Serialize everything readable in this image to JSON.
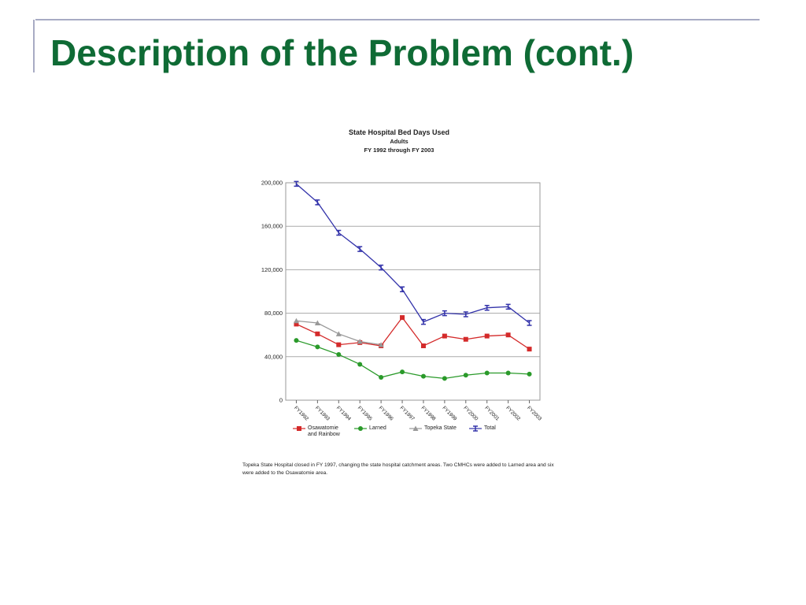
{
  "slide_title": "Description of the Problem (cont.)",
  "chart_data": {
    "type": "line",
    "title": "State Hospital Bed Days Used",
    "subtitle": [
      "Adults",
      "FY 1992 through FY 2003"
    ],
    "categories": [
      "FY1992",
      "FY1993",
      "FY1994",
      "FY1995",
      "FY1996",
      "FY1997",
      "FY1998",
      "FY1999",
      "FY2000",
      "FY2001",
      "FY2002",
      "FY2003"
    ],
    "series": [
      {
        "name": "Osawatomie and Rainbow",
        "color": "#d42a2a",
        "marker": "square",
        "values": [
          70000,
          61000,
          51000,
          53000,
          50000,
          76000,
          50000,
          59000,
          56000,
          59000,
          60000,
          47000
        ]
      },
      {
        "name": "Larned",
        "color": "#2a9a2a",
        "marker": "circle",
        "values": [
          55000,
          49000,
          42000,
          33000,
          21000,
          26000,
          22000,
          20000,
          23000,
          25000,
          25000,
          24000
        ]
      },
      {
        "name": "Topeka State",
        "color": "#999999",
        "marker": "triangle",
        "values": [
          73000,
          71000,
          61000,
          54000,
          51000,
          null,
          null,
          null,
          null,
          null,
          null,
          null
        ]
      },
      {
        "name": "Total",
        "color": "#3333aa",
        "marker": "ibeam",
        "values": [
          199000,
          182000,
          154000,
          139000,
          122000,
          102000,
          72000,
          80000,
          79000,
          85000,
          86000,
          71000
        ]
      }
    ],
    "ylim": [
      0,
      200000
    ],
    "yticks": [
      0,
      {
        "value": 40000,
        "label": "40,000"
      },
      {
        "value": 80000,
        "label": "80,000"
      },
      {
        "value": 120000,
        "label": "120,000"
      },
      {
        "value": 160000,
        "label": "160,000"
      },
      {
        "value": 200000,
        "label": "200,000"
      }
    ],
    "grid": true,
    "legend": "bottom"
  },
  "caption": "Topeka State Hospital closed in FY 1997, changing the state hospital catchment areas.  Two CMHCs were added to Larned area and six were added to the Osawatomie area."
}
